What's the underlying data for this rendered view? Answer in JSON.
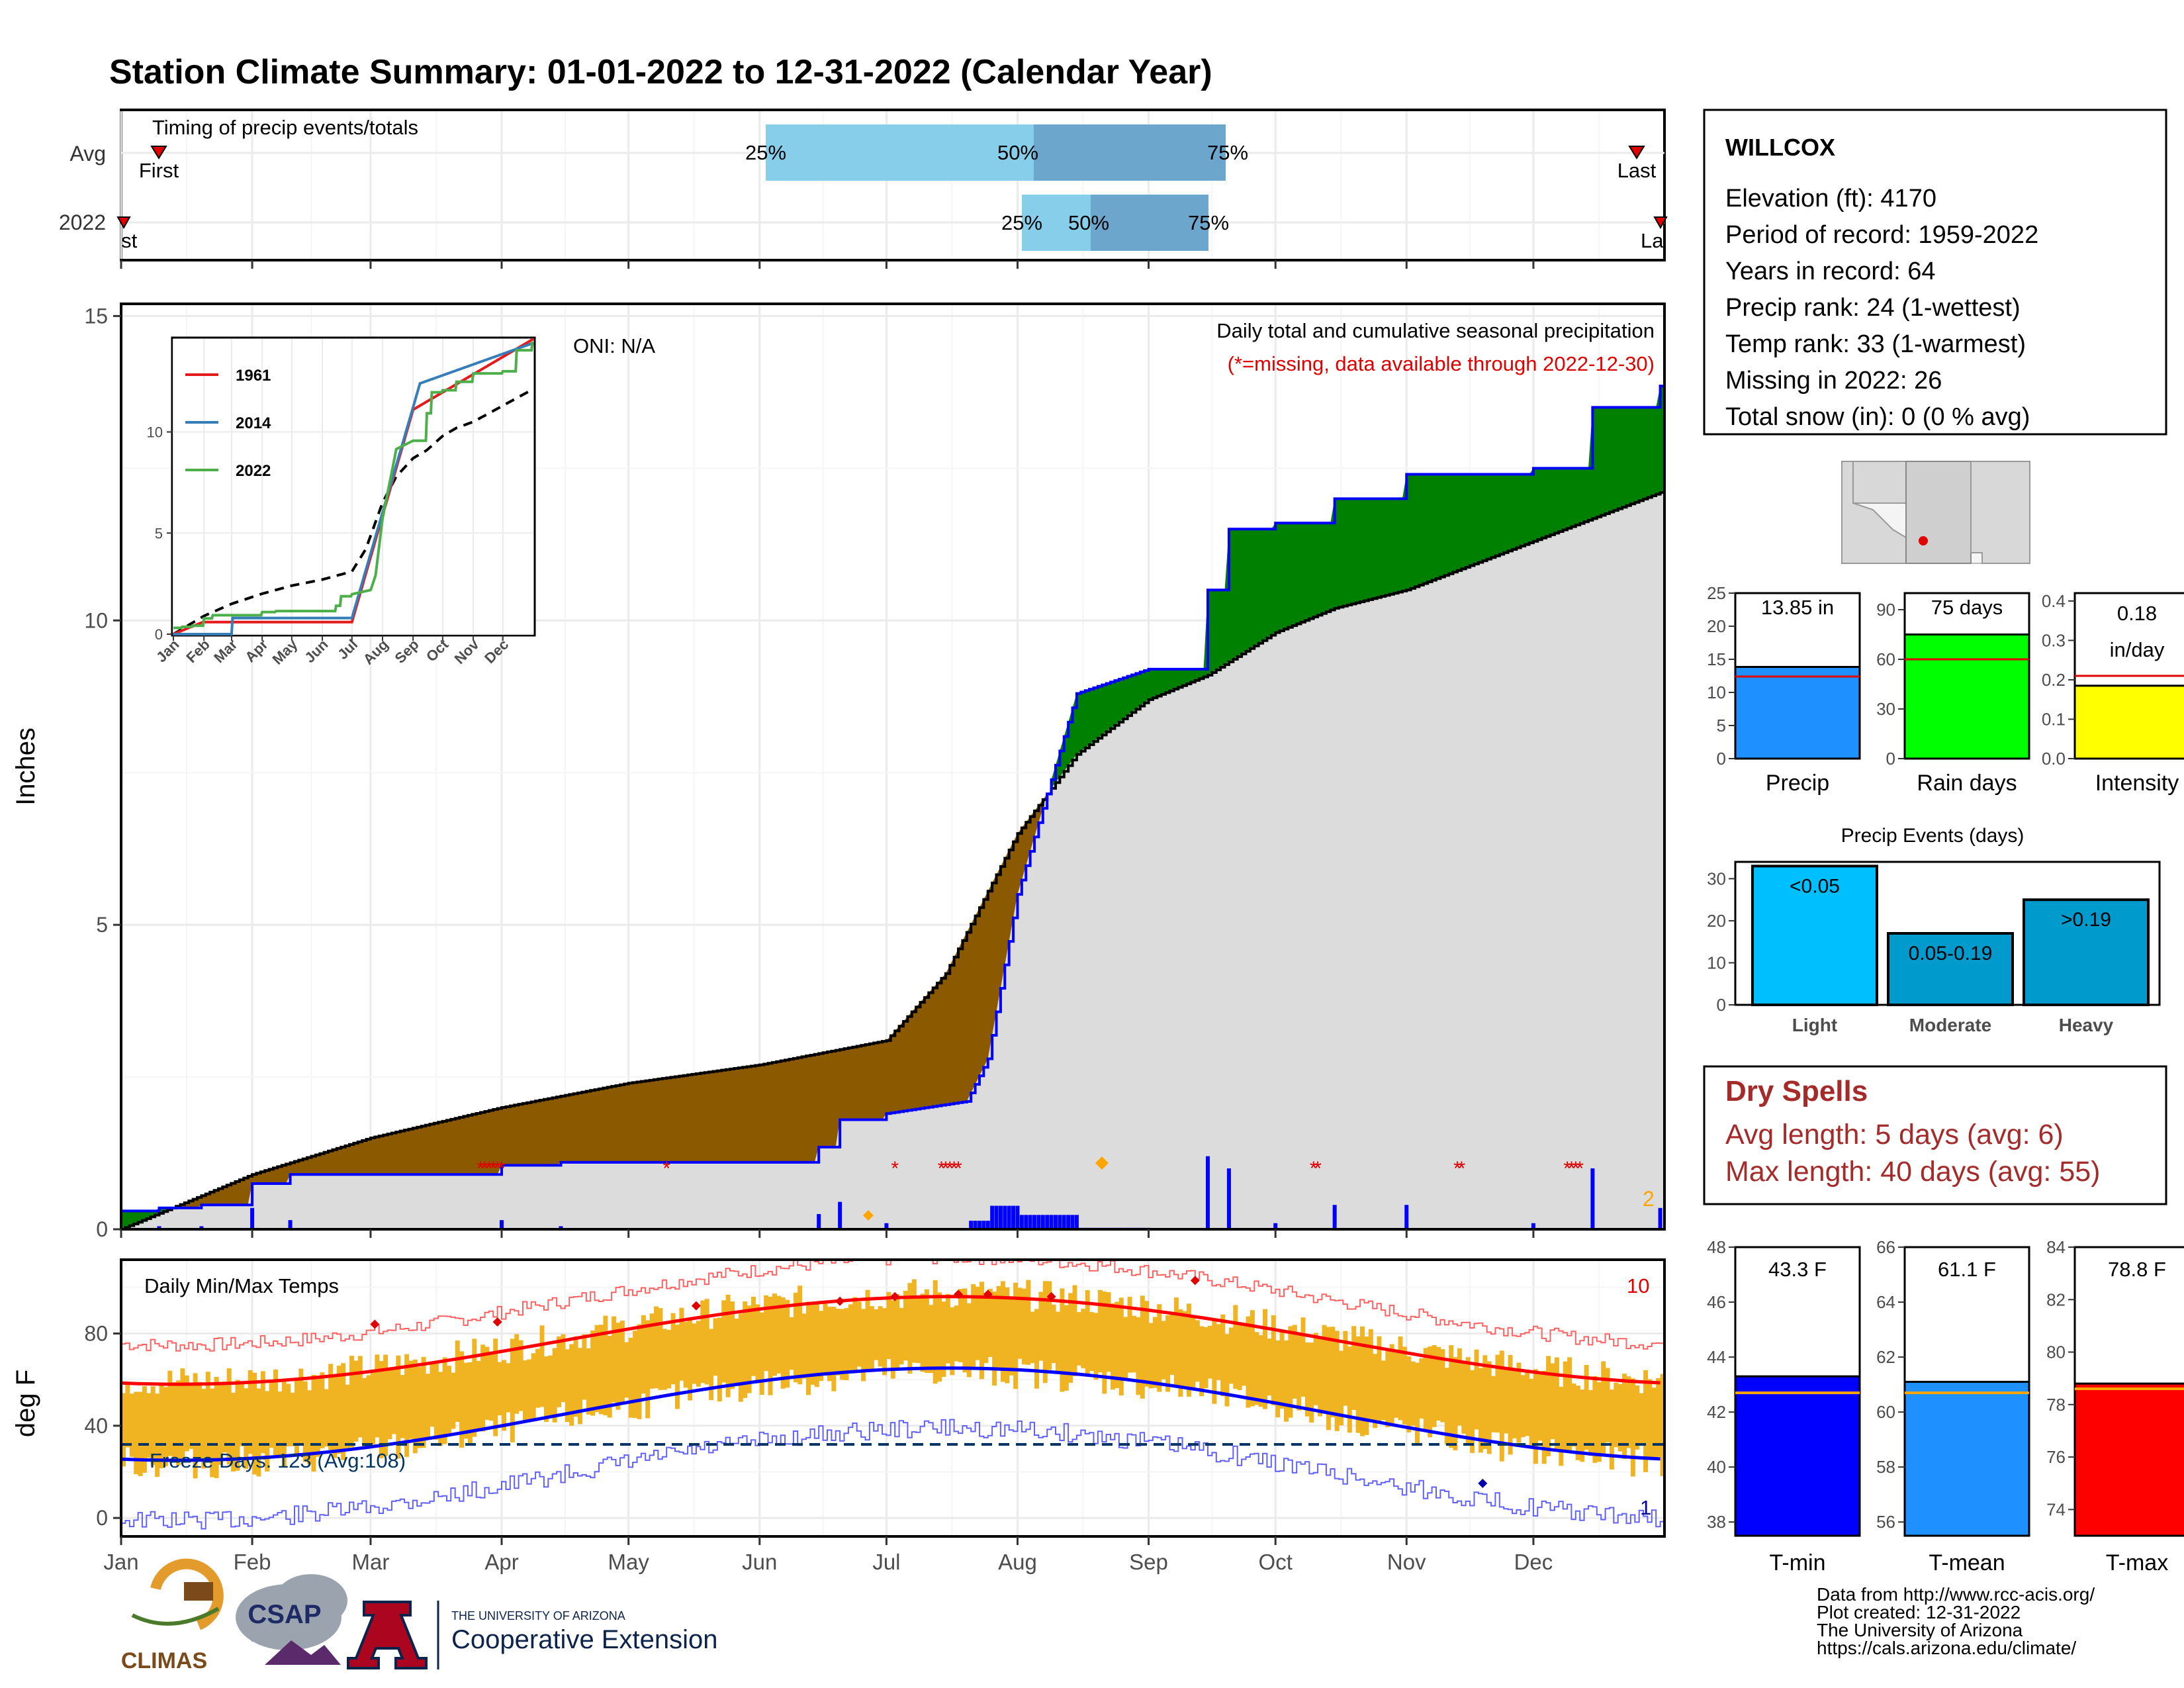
{
  "title": "Station Climate Summary: 01-01-2022 to 12-31-2022 (Calendar Year)",
  "colors": {
    "title": "#000080",
    "light_blue": "#87CEEB",
    "mid_blue": "#6CA6CD",
    "green": "#008000",
    "brown": "#8B5A00",
    "gray_fill": "#DCDCDC",
    "blue": "#0000FF",
    "red": "#FF0000",
    "orange": "#FFA500",
    "gold": "#F0B423",
    "navy": "#003366"
  },
  "timing": {
    "label": "Timing of precip events/totals",
    "rows": [
      {
        "name": "Avg",
        "first": "First",
        "last": "Last",
        "p25": "25%",
        "p50": "50%",
        "p75": "75%"
      },
      {
        "name": "2022",
        "first": "First",
        "last": "Last",
        "p25": "25%",
        "p50": "50%",
        "p75": "75%"
      }
    ]
  },
  "main_chart": {
    "ylabel": "Inches",
    "yticks": [
      "0",
      "5",
      "10",
      "15"
    ],
    "title": "Daily total and cumulative seasonal precipitation",
    "subtitle": "(*=missing, data available through 2022-12-30)",
    "oni": "ONI: N/A",
    "corner_count": "2"
  },
  "inset": {
    "legend": [
      "1961",
      "2014",
      "2022"
    ],
    "yticks": [
      "0",
      "5",
      "10"
    ],
    "xticks": [
      "Jan",
      "Feb",
      "Mar",
      "Apr",
      "May",
      "Jun",
      "Jul",
      "Aug",
      "Sep",
      "Oct",
      "Nov",
      "Dec"
    ]
  },
  "temp_chart": {
    "ylabel": "deg F",
    "label": "Daily Min/Max Temps",
    "freeze": "Freeze Days: 123 (Avg:108)",
    "count_hot": "10",
    "count_cold": "1",
    "yticks": [
      "0",
      "40",
      "80"
    ]
  },
  "months": [
    "Jan",
    "Feb",
    "Mar",
    "Apr",
    "May",
    "Jun",
    "Jul",
    "Aug",
    "Sep",
    "Oct",
    "Nov",
    "Dec"
  ],
  "station": {
    "name": "WILLCOX",
    "lines": [
      "Elevation (ft): 4170",
      "Period of record: 1959-2022",
      "Years in record: 64",
      "Precip rank: 24 (1-wettest)",
      "Temp rank: 33 (1-warmest)",
      "Missing in 2022: 26",
      "Total snow (in): 0 (0 % avg)"
    ]
  },
  "mini_bars": [
    {
      "label": "Precip",
      "value_text": "13.85 in",
      "value": 13.85,
      "avg": 12.4,
      "ymax": 25,
      "ticks": [
        "0",
        "5",
        "10",
        "15",
        "20",
        "25"
      ],
      "color": "#1E90FF"
    },
    {
      "label": "Rain days",
      "value_text": "75 days",
      "value": 75,
      "avg": 60,
      "ymax": 100,
      "ticks": [
        "0",
        "30",
        "60",
        "90"
      ],
      "color": "#00FF00"
    },
    {
      "label": "Intensity",
      "value_text_1": "0.18",
      "value_text_2": "in/day",
      "value": 0.185,
      "avg": 0.21,
      "ymax": 0.42,
      "ticks": [
        "0.0",
        "0.1",
        "0.2",
        "0.3",
        "0.4"
      ],
      "color": "#FFFF00"
    }
  ],
  "events": {
    "title": "Precip Events (days)",
    "yticks": [
      "0",
      "10",
      "20",
      "30"
    ],
    "bars": [
      {
        "label": "Light",
        "text": "<0.05",
        "value": 33,
        "color": "#00BFFF"
      },
      {
        "label": "Moderate",
        "text": "0.05-0.19",
        "value": 17,
        "color": "#009ACD"
      },
      {
        "label": "Heavy",
        "text": ">0.19",
        "value": 25,
        "color": "#009ACD"
      }
    ]
  },
  "dry_spells": {
    "title": "Dry Spells",
    "avg": "Avg length: 5 days (avg: 6)",
    "max": "Max length: 40 days (avg: 55)"
  },
  "temp_bars": [
    {
      "label": "T-min",
      "value_text": "43.3 F",
      "value": 43.3,
      "avg": 42.7,
      "ymin": 37.5,
      "ymax": 48,
      "ticks": [
        "38",
        "40",
        "42",
        "44",
        "46",
        "48"
      ],
      "color": "#0000FF"
    },
    {
      "label": "T-mean",
      "value_text": "61.1 F",
      "value": 61.1,
      "avg": 60.7,
      "ymin": 55.5,
      "ymax": 66,
      "ticks": [
        "56",
        "58",
        "60",
        "62",
        "64",
        "66"
      ],
      "color": "#1E90FF"
    },
    {
      "label": "T-max",
      "value_text": "78.8 F",
      "value": 78.8,
      "avg": 78.6,
      "ymin": 73,
      "ymax": 84,
      "ticks": [
        "74",
        "76",
        "78",
        "80",
        "82",
        "84"
      ],
      "color": "#FF0000"
    }
  ],
  "credits": [
    "Data from http://www.rcc-acis.org/",
    "Plot created: 12-31-2022",
    "The University of Arizona",
    "https://cals.arizona.edu/climate/"
  ],
  "logos": {
    "climas": "CLIMAS",
    "csap": "CSAP",
    "ua_small": "THE UNIVERSITY OF ARIZONA",
    "ua_big": "Cooperative Extension"
  },
  "chart_data": {
    "type": "area",
    "title": "Daily total and cumulative seasonal precipitation",
    "ylabel": "Inches",
    "ylim": [
      0,
      15
    ],
    "series": [
      {
        "name": "2022",
        "x": [
          "Jan 1",
          "Jan 10",
          "Jan 20",
          "Feb 1",
          "Feb 10",
          "Apr 1",
          "Apr 15",
          "Jun 1",
          "Jun 15",
          "Jun 20",
          "Jul 1",
          "Jul 20",
          "Jul 25",
          "Aug 1",
          "Aug 15",
          "Sep 1",
          "Sep 15",
          "Sep 20",
          "Oct 1",
          "Oct 15",
          "Nov 1",
          "Dec 1",
          "Dec 15",
          "Dec 31"
        ],
        "values": [
          0.3,
          0.35,
          0.4,
          0.75,
          0.9,
          1.05,
          1.1,
          1.1,
          1.35,
          1.8,
          1.9,
          2.1,
          2.8,
          5.5,
          8.8,
          9.2,
          10.5,
          11.5,
          11.6,
          12.0,
          12.4,
          12.5,
          13.5,
          13.85
        ]
      },
      {
        "name": "Avg",
        "x": [
          "Jan 1",
          "Feb 1",
          "Mar 1",
          "Apr 1",
          "May 1",
          "Jun 1",
          "Jul 1",
          "Jul 15",
          "Aug 1",
          "Aug 15",
          "Sep 1",
          "Sep 15",
          "Oct 1",
          "Oct 15",
          "Nov 1",
          "Dec 1",
          "Dec 31"
        ],
        "values": [
          0.0,
          0.9,
          1.5,
          2.0,
          2.4,
          2.7,
          3.1,
          4.2,
          6.5,
          7.8,
          8.7,
          9.1,
          9.8,
          10.2,
          10.5,
          11.3,
          12.1
        ]
      }
    ]
  }
}
